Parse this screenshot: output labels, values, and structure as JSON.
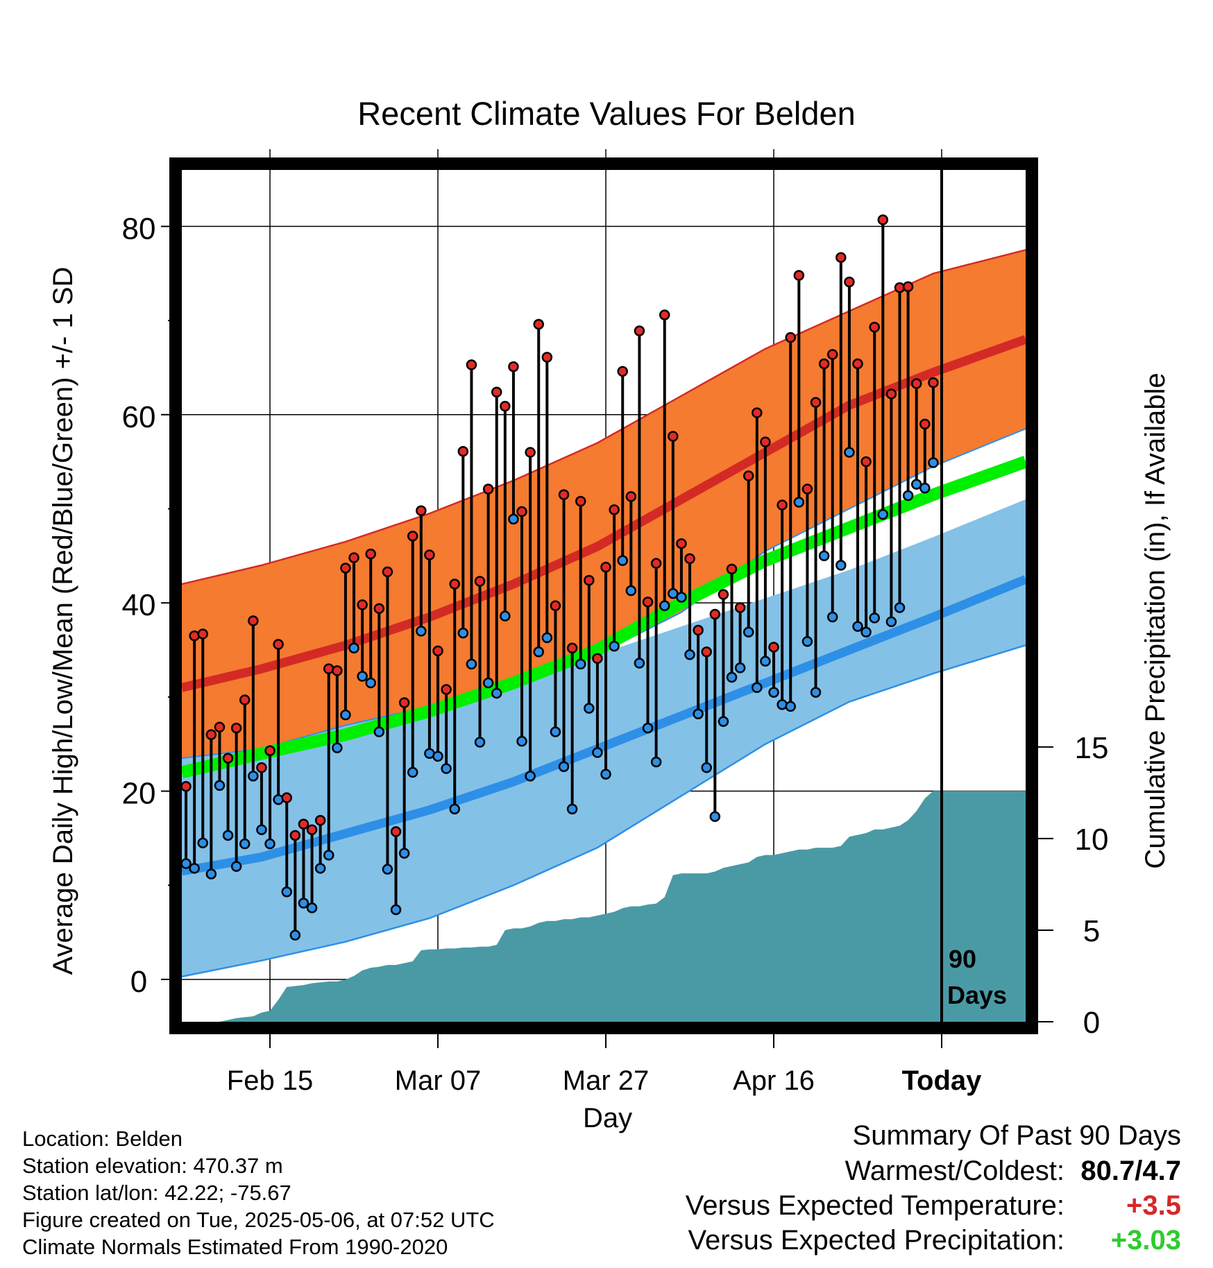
{
  "chart_data": {
    "type": "line",
    "title": "Recent Climate Values For Belden",
    "xlabel": "Day",
    "ylabel": "Average Daily High/Low/Mean (Red/Blue/Green) +/- 1 SD",
    "ylabel_right": "Cumulative Precipitation (in), If Available",
    "ylim": [
      -4.5,
      86
    ],
    "y2lim": [
      0,
      46.5
    ],
    "yticks": [
      0,
      20,
      40,
      60,
      80
    ],
    "y2ticks": [
      0,
      5,
      10,
      15
    ],
    "x_ticks": [
      {
        "day": 11,
        "label": "Feb 15"
      },
      {
        "day": 31,
        "label": "Mar 07"
      },
      {
        "day": 51,
        "label": "Mar 27"
      },
      {
        "day": 71,
        "label": "Apr 16"
      },
      {
        "day": 91,
        "label": "Today"
      }
    ],
    "xlim": [
      0.5,
      101
    ],
    "grid": true,
    "today_marker": {
      "day": 91,
      "label_line1": "90",
      "label_line2": "Days"
    },
    "normals": {
      "days": [
        0.5,
        10,
        20,
        30,
        40,
        50,
        60,
        70,
        80,
        90,
        101
      ],
      "high_mean": [
        31,
        33,
        35.5,
        38.5,
        42,
        46,
        51,
        56,
        61,
        64.5,
        68
      ],
      "high_upper": [
        42,
        44,
        46.5,
        49.5,
        53,
        57,
        62,
        67,
        71,
        75,
        77.5
      ],
      "high_lower": [
        23.5,
        24.5,
        27,
        29,
        32,
        34.5,
        39,
        45.5,
        50,
        54.5,
        58.5
      ],
      "low_mean": [
        11.5,
        13,
        15.5,
        18,
        21,
        24.5,
        28,
        31.5,
        35,
        38.5,
        42.5
      ],
      "low_upper": [
        23.5,
        24.5,
        27,
        29,
        32,
        34.5,
        37.5,
        40.5,
        43.5,
        47,
        51
      ],
      "low_lower": [
        0.3,
        2,
        4,
        6.5,
        10,
        14,
        19.5,
        25,
        29.5,
        32.5,
        35.5
      ],
      "avg_mean": [
        22,
        24,
        26,
        28.5,
        31.5,
        35,
        40,
        44.5,
        48,
        51.5,
        55
      ]
    },
    "series": [
      {
        "name": "High",
        "color": "#e32b26",
        "days": [
          1,
          2,
          3,
          4,
          5,
          6,
          7,
          8,
          9,
          10,
          11,
          12,
          13,
          14,
          15,
          16,
          17,
          18,
          19,
          20,
          21,
          22,
          23,
          24,
          25,
          26,
          27,
          28,
          29,
          30,
          31,
          32,
          33,
          34,
          35,
          36,
          37,
          38,
          39,
          40,
          41,
          42,
          43,
          44,
          45,
          46,
          47,
          48,
          49,
          50,
          51,
          52,
          53,
          54,
          55,
          56,
          57,
          58,
          59,
          60,
          61,
          62,
          63,
          64,
          65,
          66,
          67,
          68,
          69,
          70,
          71,
          72,
          73,
          74,
          75,
          76,
          77,
          78,
          79,
          80,
          81,
          82,
          83,
          84,
          85,
          86,
          87,
          88,
          89,
          90
        ],
        "values": [
          20.5,
          36.5,
          36.7,
          26,
          26.8,
          23.5,
          26.7,
          29.7,
          38.1,
          22.5,
          24.3,
          35.6,
          19.3,
          15.3,
          16.5,
          15.9,
          16.9,
          33,
          32.8,
          43.7,
          44.8,
          39.8,
          45.2,
          39.4,
          43.3,
          15.7,
          29.4,
          47.1,
          49.8,
          45.1,
          34.9,
          30.8,
          42,
          56.1,
          65.3,
          42.3,
          52.1,
          62.4,
          60.9,
          65.1,
          49.7,
          56,
          69.6,
          66.1,
          39.7,
          51.5,
          35.2,
          50.8,
          42.4,
          34.1,
          43.8,
          49.9,
          64.6,
          51.3,
          68.9,
          40.1,
          44.2,
          70.6,
          57.7,
          46.3,
          44.7,
          37.1,
          34.8,
          38.8,
          40.9,
          43.6,
          39.5,
          53.5,
          60.2,
          57.1,
          35.3,
          50.4,
          68.2,
          74.8,
          52.1,
          61.3,
          65.4,
          66.4,
          76.7,
          74.1,
          65.4,
          55,
          69.3,
          80.7,
          62.2,
          73.5,
          73.6,
          63.3,
          59,
          63.4
        ]
      },
      {
        "name": "Low",
        "color": "#2e8fe6",
        "days": [
          1,
          2,
          3,
          4,
          5,
          6,
          7,
          8,
          9,
          10,
          11,
          12,
          13,
          14,
          15,
          16,
          17,
          18,
          19,
          20,
          21,
          22,
          23,
          24,
          25,
          26,
          27,
          28,
          29,
          30,
          31,
          32,
          33,
          34,
          35,
          36,
          37,
          38,
          39,
          40,
          41,
          42,
          43,
          44,
          45,
          46,
          47,
          48,
          49,
          50,
          51,
          52,
          53,
          54,
          55,
          56,
          57,
          58,
          59,
          60,
          61,
          62,
          63,
          64,
          65,
          66,
          67,
          68,
          69,
          70,
          71,
          72,
          73,
          74,
          75,
          76,
          77,
          78,
          79,
          80,
          81,
          82,
          83,
          84,
          85,
          86,
          87,
          88,
          89,
          90
        ],
        "values": [
          12.3,
          11.8,
          14.5,
          11.2,
          20.6,
          15.3,
          12,
          14.4,
          21.6,
          15.9,
          14.4,
          19.1,
          9.3,
          4.7,
          8.1,
          7.6,
          11.8,
          13.2,
          24.6,
          28.1,
          35.2,
          32.2,
          31.5,
          26.3,
          11.7,
          7.4,
          13.4,
          22,
          37,
          24,
          23.7,
          22.4,
          18.1,
          36.8,
          33.5,
          25.2,
          31.5,
          30.4,
          38.6,
          48.9,
          25.3,
          21.6,
          34.8,
          36.3,
          26.3,
          22.6,
          18.1,
          33.5,
          28.8,
          24.1,
          21.8,
          35.4,
          44.5,
          41.3,
          33.6,
          26.7,
          23.1,
          39.7,
          41,
          40.6,
          34.5,
          28.2,
          22.5,
          17.3,
          27.4,
          32.1,
          33.1,
          36.9,
          31,
          33.8,
          30.5,
          29.2,
          29,
          50.7,
          35.9,
          30.5,
          45,
          38.5,
          44,
          56,
          37.5,
          36.9,
          38.4,
          49.4,
          38,
          39.5,
          51.4,
          52.6,
          52.2,
          54.9
        ]
      }
    ],
    "precip": {
      "name": "Cumulative Precipitation",
      "color": "#4a9aa5",
      "days": [
        1,
        2,
        3,
        4,
        5,
        6,
        7,
        8,
        9,
        10,
        11,
        12,
        13,
        14,
        15,
        16,
        17,
        18,
        19,
        20,
        21,
        22,
        23,
        24,
        25,
        26,
        27,
        28,
        29,
        30,
        31,
        32,
        33,
        34,
        35,
        36,
        37,
        38,
        39,
        40,
        41,
        42,
        43,
        44,
        45,
        46,
        47,
        48,
        49,
        50,
        51,
        52,
        53,
        54,
        55,
        56,
        57,
        58,
        59,
        60,
        61,
        62,
        63,
        64,
        65,
        66,
        67,
        68,
        69,
        70,
        71,
        72,
        73,
        74,
        75,
        76,
        77,
        78,
        79,
        80,
        81,
        82,
        83,
        84,
        85,
        86,
        87,
        88,
        89,
        90,
        91,
        92,
        93,
        94,
        95,
        96,
        97,
        98,
        99,
        100,
        101
      ],
      "values": [
        0,
        0,
        0,
        0,
        0,
        0.1,
        0.2,
        0.25,
        0.3,
        0.5,
        0.6,
        1.2,
        1.9,
        1.95,
        2.0,
        2.1,
        2.15,
        2.2,
        2.2,
        2.3,
        2.5,
        2.8,
        2.95,
        3.0,
        3.1,
        3.1,
        3.2,
        3.3,
        3.9,
        3.95,
        3.95,
        4.0,
        4.0,
        4.05,
        4.05,
        4.1,
        4.1,
        4.2,
        5.0,
        5.1,
        5.1,
        5.2,
        5.4,
        5.5,
        5.5,
        5.6,
        5.6,
        5.7,
        5.7,
        5.8,
        5.9,
        6.0,
        6.2,
        6.3,
        6.3,
        6.4,
        6.45,
        6.8,
        8.0,
        8.1,
        8.1,
        8.1,
        8.1,
        8.2,
        8.4,
        8.5,
        8.6,
        8.7,
        9.0,
        9.1,
        9.1,
        9.2,
        9.3,
        9.4,
        9.4,
        9.5,
        9.5,
        9.5,
        9.6,
        10.1,
        10.2,
        10.3,
        10.5,
        10.5,
        10.6,
        10.7,
        11.0,
        11.5,
        12.2,
        12.6,
        12.6,
        12.6,
        12.6,
        12.6,
        12.6,
        12.6,
        12.6,
        12.6,
        12.6,
        12.6,
        12.6
      ]
    }
  },
  "location": {
    "line1": "Location: Belden",
    "line2": "Station elevation: 470.37 m",
    "line3": "Station lat/lon: 42.22; -75.67",
    "line4": "Figure created on Tue, 2025-05-06, at 07:52 UTC",
    "line5": "Climate Normals Estimated From 1990-2020"
  },
  "summary": {
    "title": "Summary Of Past 90 Days",
    "warmest_label": "Warmest/Coldest:",
    "warmest_value": "80.7/4.7",
    "temp_label": "Versus Expected Temperature:",
    "temp_value": "+3.5",
    "temp_color": "#d62728",
    "precip_label": "Versus Expected Precipitation:",
    "precip_value": "+3.03",
    "precip_color": "#2ecc2e"
  },
  "colors": {
    "high_band": "#f47b30",
    "high_line": "#d42a25",
    "low_band": "#84c1e7",
    "low_line": "#2e8fe6",
    "mean_line": "#00ee00",
    "precip_fill": "#4a9aa5"
  }
}
